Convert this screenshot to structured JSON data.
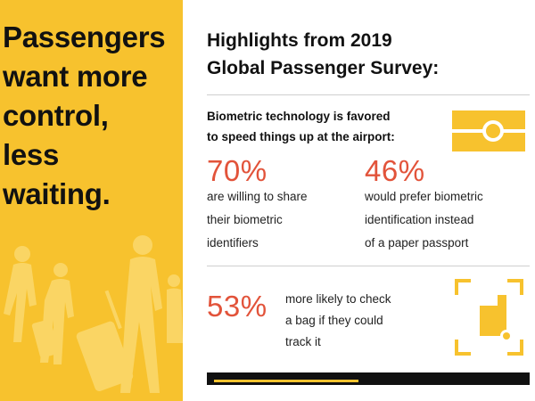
{
  "colors": {
    "brand_yellow": "#f7c22e",
    "accent_red": "#e2533a",
    "text_dark": "#111111",
    "divider": "#cfcfcf"
  },
  "left_panel": {
    "headline": "Passengers\nwant more\ncontrol,\nless\nwaiting."
  },
  "survey": {
    "title": "Highlights from 2019\nGlobal Passenger Survey:"
  },
  "biometric_section": {
    "intro": "Biometric technology is favored\nto speed things up at the airport:",
    "stats": [
      {
        "value": "70%",
        "description": "are willing to share\ntheir biometric\nidentifiers"
      },
      {
        "value": "46%",
        "description": "would prefer biometric\nidentification instead\nof a paper passport"
      }
    ],
    "icon": "id-card-icon"
  },
  "tracking_section": {
    "value": "53%",
    "description": "more likely to check\na bag if they could\ntrack it",
    "icon": "bag-tracking-icon"
  }
}
